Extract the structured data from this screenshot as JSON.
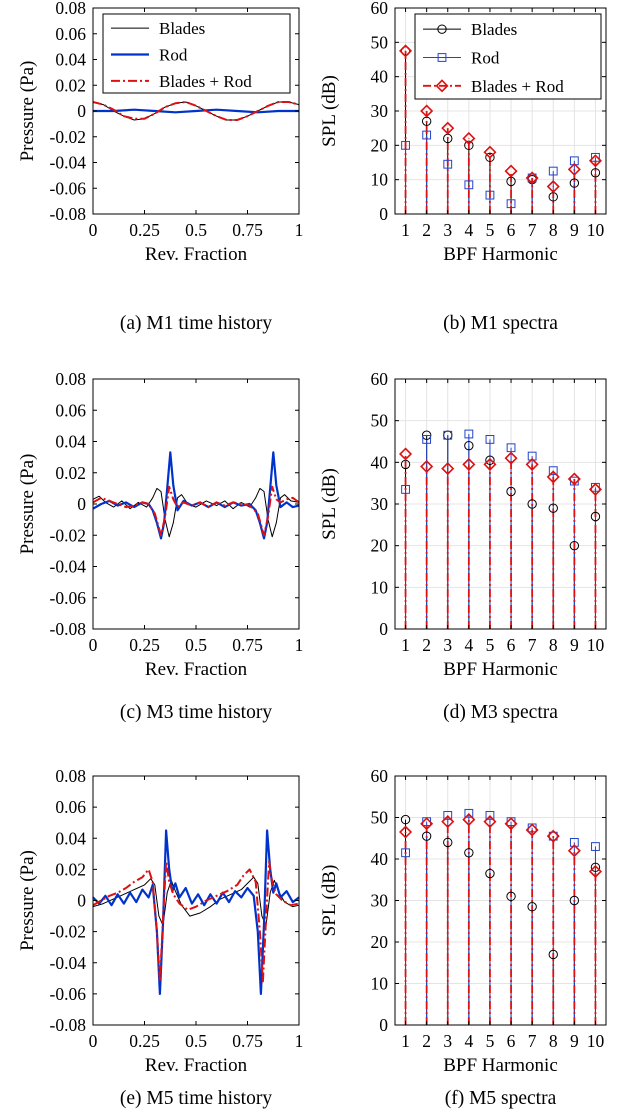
{
  "chart_data": [
    {
      "type": "line",
      "caption": "(a) M1 time history",
      "xlabel": "Rev. Fraction",
      "ylabel": "Pressure (Pa)",
      "xlim": [
        0,
        1
      ],
      "ylim": [
        -0.08,
        0.08
      ],
      "xticks": [
        0,
        0.25,
        0.5,
        0.75,
        1
      ],
      "xtick_labels": [
        "0",
        "0.25",
        "0.5",
        "0.75",
        "1"
      ],
      "yticks": [
        -0.08,
        -0.06,
        -0.04,
        -0.02,
        0,
        0.02,
        0.04,
        0.06,
        0.08
      ],
      "ytick_labels": [
        "-0.08",
        "-0.06",
        "-0.04",
        "-0.02",
        "0",
        "0.02",
        "0.04",
        "0.06",
        "0.08"
      ],
      "grid": false,
      "legend_position": "top-left",
      "series": [
        {
          "name": "Blades",
          "color": "#000000",
          "style": "solid",
          "x": [
            0,
            0.05,
            0.1,
            0.15,
            0.2,
            0.25,
            0.3,
            0.35,
            0.4,
            0.45,
            0.5,
            0.55,
            0.6,
            0.65,
            0.7,
            0.75,
            0.8,
            0.85,
            0.9,
            0.95,
            1
          ],
          "y": [
            0.007,
            0.005,
            0,
            -0.004,
            -0.007,
            -0.006,
            -0.002,
            0.003,
            0.006,
            0.007,
            0.004,
            0,
            -0.004,
            -0.007,
            -0.007,
            -0.004,
            0,
            0.004,
            0.007,
            0.007,
            0.005
          ]
        },
        {
          "name": "Rod",
          "color": "#0033cc",
          "style": "solid",
          "x": [
            0,
            0.1,
            0.2,
            0.3,
            0.4,
            0.5,
            0.6,
            0.7,
            0.8,
            0.9,
            1
          ],
          "y": [
            0,
            0,
            0.001,
            0,
            -0.001,
            0,
            0.001,
            0,
            -0.001,
            0,
            0
          ]
        },
        {
          "name": "Blades + Rod",
          "color": "#dd1111",
          "style": "dashdot",
          "x": [
            0,
            0.05,
            0.1,
            0.15,
            0.2,
            0.25,
            0.3,
            0.35,
            0.4,
            0.45,
            0.5,
            0.55,
            0.6,
            0.65,
            0.7,
            0.75,
            0.8,
            0.85,
            0.9,
            0.95,
            1
          ],
          "y": [
            0.007,
            0.005,
            0.001,
            -0.004,
            -0.006,
            -0.006,
            -0.002,
            0.003,
            0.006,
            0.007,
            0.004,
            0,
            -0.004,
            -0.007,
            -0.007,
            -0.004,
            0,
            0.004,
            0.007,
            0.007,
            0.005
          ]
        }
      ]
    },
    {
      "type": "stem",
      "caption": "(b) M1 spectra",
      "xlabel": "BPF Harmonic",
      "ylabel": "SPL (dB)",
      "xlim": [
        0.5,
        10.5
      ],
      "ylim": [
        0,
        60
      ],
      "categories": [
        1,
        2,
        3,
        4,
        5,
        6,
        7,
        8,
        9,
        10
      ],
      "yticks": [
        0,
        10,
        20,
        30,
        40,
        50,
        60
      ],
      "ytick_labels": [
        "0",
        "10",
        "20",
        "30",
        "40",
        "50",
        "60"
      ],
      "grid": true,
      "legend_position": "top-right",
      "series": [
        {
          "name": "Blades",
          "color": "#000000",
          "marker": "circle",
          "values": [
            47.5,
            27,
            22,
            20,
            16.5,
            9.5,
            10,
            5,
            9,
            12
          ]
        },
        {
          "name": "Rod",
          "color": "#2244cc",
          "marker": "square",
          "values": [
            20,
            23,
            14.5,
            8.5,
            5.5,
            3,
            10.5,
            12.5,
            15.5,
            16.5
          ]
        },
        {
          "name": "Blades + Rod",
          "color": "#dd1111",
          "marker": "diamond",
          "values": [
            47.5,
            30,
            25,
            22,
            18,
            12.5,
            10.5,
            8,
            13,
            15.5
          ]
        }
      ]
    },
    {
      "type": "line",
      "caption": "(c) M3 time history",
      "xlabel": "Rev. Fraction",
      "ylabel": "Pressure (Pa)",
      "xlim": [
        0,
        1
      ],
      "ylim": [
        -0.08,
        0.08
      ],
      "xticks": [
        0,
        0.25,
        0.5,
        0.75,
        1
      ],
      "xtick_labels": [
        "0",
        "0.25",
        "0.5",
        "0.75",
        "1"
      ],
      "yticks": [
        -0.08,
        -0.06,
        -0.04,
        -0.02,
        0,
        0.02,
        0.04,
        0.06,
        0.08
      ],
      "ytick_labels": [
        "-0.08",
        "-0.06",
        "-0.04",
        "-0.02",
        "0",
        "0.02",
        "0.04",
        "0.06",
        "0.08"
      ],
      "grid": false,
      "series": [
        {
          "name": "Blades",
          "color": "#000000",
          "style": "solid",
          "x": [
            0,
            0.03,
            0.06,
            0.1,
            0.14,
            0.18,
            0.22,
            0.26,
            0.29,
            0.31,
            0.33,
            0.35,
            0.37,
            0.39,
            0.41,
            0.43,
            0.46,
            0.5,
            0.55,
            0.6,
            0.64,
            0.68,
            0.72,
            0.76,
            0.79,
            0.81,
            0.83,
            0.85,
            0.87,
            0.89,
            0.91,
            0.93,
            0.96,
            1
          ],
          "y": [
            0.003,
            0.005,
            0.001,
            -0.002,
            0.002,
            -0.003,
            0.001,
            -0.002,
            0.004,
            0.01,
            0.008,
            -0.01,
            -0.021,
            -0.012,
            0.004,
            0.006,
            0,
            -0.002,
            0.002,
            -0.001,
            0.002,
            -0.003,
            0.001,
            -0.002,
            0.004,
            0.01,
            0.008,
            -0.01,
            -0.021,
            -0.012,
            0.004,
            0.006,
            0.002,
            0.001
          ]
        },
        {
          "name": "Rod",
          "color": "#0033cc",
          "style": "solid",
          "x": [
            0,
            0.04,
            0.08,
            0.12,
            0.16,
            0.2,
            0.24,
            0.27,
            0.29,
            0.31,
            0.33,
            0.345,
            0.36,
            0.375,
            0.39,
            0.41,
            0.44,
            0.48,
            0.52,
            0.56,
            0.6,
            0.64,
            0.68,
            0.72,
            0.76,
            0.79,
            0.81,
            0.83,
            0.845,
            0.86,
            0.875,
            0.89,
            0.91,
            0.94,
            0.97,
            1
          ],
          "y": [
            -0.003,
            0,
            0.002,
            -0.001,
            0.001,
            -0.002,
            0.001,
            0,
            -0.004,
            -0.012,
            -0.022,
            -0.012,
            0.01,
            0.033,
            0.012,
            -0.004,
            0.002,
            -0.001,
            0.001,
            -0.002,
            0.001,
            -0.002,
            0.001,
            -0.001,
            0,
            -0.004,
            -0.012,
            -0.022,
            -0.012,
            0.01,
            0.033,
            0.012,
            -0.002,
            0.001,
            -0.002,
            -0.001
          ]
        },
        {
          "name": "Blades + Rod",
          "color": "#dd1111",
          "style": "dashdot",
          "x": [
            0,
            0.04,
            0.08,
            0.12,
            0.16,
            0.2,
            0.24,
            0.27,
            0.3,
            0.33,
            0.35,
            0.37,
            0.39,
            0.41,
            0.44,
            0.48,
            0.52,
            0.56,
            0.6,
            0.64,
            0.68,
            0.72,
            0.76,
            0.8,
            0.83,
            0.85,
            0.87,
            0.89,
            0.91,
            0.94,
            0.97,
            1
          ],
          "y": [
            0.001,
            0.004,
            0.002,
            0,
            -0.002,
            -0.001,
            0.001,
            0,
            -0.006,
            -0.02,
            -0.008,
            0.011,
            0.003,
            -0.002,
            0.001,
            -0.001,
            0.001,
            -0.002,
            0.001,
            -0.001,
            0.001,
            0,
            -0.001,
            -0.006,
            -0.02,
            -0.008,
            0.011,
            0.003,
            0.001,
            0.003,
            0.004,
            0.001
          ]
        }
      ]
    },
    {
      "type": "stem",
      "caption": "(d) M3 spectra",
      "xlabel": "BPF Harmonic",
      "ylabel": "SPL (dB)",
      "xlim": [
        0.5,
        10.5
      ],
      "ylim": [
        0,
        60
      ],
      "categories": [
        1,
        2,
        3,
        4,
        5,
        6,
        7,
        8,
        9,
        10
      ],
      "yticks": [
        0,
        10,
        20,
        30,
        40,
        50,
        60
      ],
      "ytick_labels": [
        "0",
        "10",
        "20",
        "30",
        "40",
        "50",
        "60"
      ],
      "grid": true,
      "series": [
        {
          "name": "Blades",
          "color": "#000000",
          "marker": "circle",
          "values": [
            39.5,
            46.5,
            46.5,
            44,
            40.5,
            33,
            30,
            29,
            20,
            27
          ]
        },
        {
          "name": "Rod",
          "color": "#2244cc",
          "marker": "square",
          "values": [
            33.5,
            45.5,
            46.5,
            46.8,
            45.5,
            43.5,
            41.5,
            38,
            35.5,
            34
          ]
        },
        {
          "name": "Blades + Rod",
          "color": "#dd1111",
          "marker": "diamond",
          "values": [
            42,
            39,
            38.5,
            39.5,
            39.5,
            41,
            39.5,
            36.5,
            36,
            33.5
          ]
        }
      ]
    },
    {
      "type": "line",
      "caption": "(e) M5 time history",
      "xlabel": "Rev. Fraction",
      "ylabel": "Pressure (Pa)",
      "xlim": [
        0,
        1
      ],
      "ylim": [
        -0.08,
        0.08
      ],
      "xticks": [
        0,
        0.25,
        0.5,
        0.75,
        1
      ],
      "xtick_labels": [
        "0",
        "0.25",
        "0.5",
        "0.75",
        "1"
      ],
      "yticks": [
        -0.08,
        -0.06,
        -0.04,
        -0.02,
        0,
        0.02,
        0.04,
        0.06,
        0.08
      ],
      "ytick_labels": [
        "-0.08",
        "-0.06",
        "-0.04",
        "-0.02",
        "0",
        "0.02",
        "0.04",
        "0.06",
        "0.08"
      ],
      "grid": false,
      "series": [
        {
          "name": "Blades",
          "color": "#000000",
          "style": "solid",
          "x": [
            0,
            0.05,
            0.1,
            0.15,
            0.2,
            0.25,
            0.28,
            0.3,
            0.32,
            0.34,
            0.36,
            0.38,
            0.4,
            0.43,
            0.47,
            0.52,
            0.57,
            0.62,
            0.67,
            0.72,
            0.75,
            0.78,
            0.8,
            0.82,
            0.84,
            0.86,
            0.88,
            0.9,
            0.93,
            0.97,
            1
          ],
          "y": [
            -0.004,
            -0.002,
            0.001,
            0.004,
            0.007,
            0.01,
            0.014,
            0.01,
            -0.01,
            -0.016,
            0.005,
            0.013,
            0.006,
            -0.003,
            -0.01,
            -0.008,
            -0.004,
            0.001,
            0.004,
            0.007,
            0.011,
            0.015,
            0.011,
            -0.01,
            -0.016,
            0.005,
            0.013,
            0.006,
            -0.001,
            -0.004,
            -0.003
          ]
        },
        {
          "name": "Rod",
          "color": "#0033cc",
          "style": "solid",
          "x": [
            0,
            0.03,
            0.06,
            0.09,
            0.12,
            0.15,
            0.18,
            0.21,
            0.24,
            0.27,
            0.29,
            0.31,
            0.325,
            0.34,
            0.355,
            0.37,
            0.385,
            0.4,
            0.42,
            0.45,
            0.48,
            0.51,
            0.54,
            0.57,
            0.6,
            0.63,
            0.66,
            0.69,
            0.72,
            0.75,
            0.78,
            0.8,
            0.815,
            0.83,
            0.845,
            0.86,
            0.875,
            0.89,
            0.91,
            0.94,
            0.97,
            1
          ],
          "y": [
            0.002,
            -0.002,
            0.003,
            -0.003,
            0.004,
            -0.002,
            0.005,
            -0.001,
            0.007,
            0.002,
            0.01,
            -0.02,
            -0.06,
            -0.015,
            0.045,
            0.02,
            0.006,
            0.011,
            0.002,
            0.008,
            -0.002,
            0.004,
            -0.003,
            0.004,
            -0.002,
            0.005,
            -0.001,
            0.006,
            0.002,
            0.008,
            0.003,
            -0.02,
            -0.06,
            -0.015,
            0.045,
            0.02,
            0.005,
            0.011,
            0.002,
            0.006,
            -0.001,
            0.002
          ]
        },
        {
          "name": "Blades + Rod",
          "color": "#dd1111",
          "style": "dashdot",
          "x": [
            0,
            0.04,
            0.08,
            0.12,
            0.16,
            0.2,
            0.24,
            0.27,
            0.29,
            0.31,
            0.325,
            0.34,
            0.355,
            0.37,
            0.39,
            0.42,
            0.46,
            0.5,
            0.55,
            0.6,
            0.65,
            0.7,
            0.73,
            0.76,
            0.79,
            0.81,
            0.825,
            0.84,
            0.855,
            0.87,
            0.89,
            0.92,
            0.96,
            1
          ],
          "y": [
            -0.003,
            0,
            0.003,
            0.005,
            0.008,
            0.012,
            0.015,
            0.02,
            0.012,
            -0.02,
            -0.052,
            -0.012,
            0.025,
            0.012,
            0.004,
            -0.002,
            -0.006,
            -0.004,
            0,
            0.003,
            0.006,
            0.01,
            0.016,
            0.02,
            0.012,
            -0.02,
            -0.052,
            -0.012,
            0.025,
            0.012,
            0.004,
            0,
            -0.003,
            -0.002
          ]
        }
      ]
    },
    {
      "type": "stem",
      "caption": "(f) M5 spectra",
      "xlabel": "BPF Harmonic",
      "ylabel": "SPL (dB)",
      "xlim": [
        0.5,
        10.5
      ],
      "ylim": [
        0,
        60
      ],
      "categories": [
        1,
        2,
        3,
        4,
        5,
        6,
        7,
        8,
        9,
        10
      ],
      "yticks": [
        0,
        10,
        20,
        30,
        40,
        50,
        60
      ],
      "ytick_labels": [
        "0",
        "10",
        "20",
        "30",
        "40",
        "50",
        "60"
      ],
      "grid": true,
      "series": [
        {
          "name": "Blades",
          "color": "#000000",
          "marker": "circle",
          "values": [
            49.5,
            45.5,
            44,
            41.5,
            36.5,
            31,
            28.5,
            17,
            30,
            38
          ]
        },
        {
          "name": "Rod",
          "color": "#2244cc",
          "marker": "square",
          "values": [
            41.5,
            49,
            50.5,
            51,
            50.5,
            49,
            47.5,
            45.5,
            44,
            43
          ]
        },
        {
          "name": "Blades + Rod",
          "color": "#dd1111",
          "marker": "diamond",
          "values": [
            46.5,
            48.5,
            49,
            49.5,
            49,
            48.5,
            47,
            45.5,
            42,
            37
          ]
        }
      ]
    }
  ]
}
